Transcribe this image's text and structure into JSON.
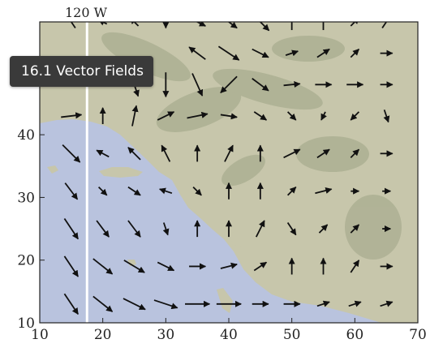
{
  "tooltip": {
    "text": "16.1 Vector Fields"
  },
  "map": {
    "top_label": "120 W",
    "x_ticks": [
      "10",
      "20",
      "30",
      "40",
      "50",
      "60",
      "70"
    ],
    "y_ticks": [
      "10",
      "20",
      "30",
      "40"
    ],
    "meridian_x": 17.5,
    "colors": {
      "ocean": "#b9c3de",
      "land": "#c7c6ab",
      "land_dark": "#9ea486",
      "arrow": "#111111",
      "meridian": "#ffffff",
      "frame": "#222222"
    },
    "vectors": [
      {
        "x": 15,
        "y": 43,
        "dx": 2.5,
        "dy": 0.3
      },
      {
        "x": 20,
        "y": 43,
        "dx": 0,
        "dy": 2
      },
      {
        "x": 25,
        "y": 43,
        "dx": 0.5,
        "dy": 2.5
      },
      {
        "x": 30,
        "y": 43,
        "dx": 2,
        "dy": 1
      },
      {
        "x": 35,
        "y": 43,
        "dx": 2.5,
        "dy": 0.5
      },
      {
        "x": 40,
        "y": 43,
        "dx": 2,
        "dy": -0.3
      },
      {
        "x": 45,
        "y": 43,
        "dx": 1.5,
        "dy": -1
      },
      {
        "x": 50,
        "y": 43,
        "dx": 1,
        "dy": -1
      },
      {
        "x": 55,
        "y": 43,
        "dx": -0.5,
        "dy": -1
      },
      {
        "x": 60,
        "y": 43,
        "dx": -1,
        "dy": -1
      },
      {
        "x": 65,
        "y": 43,
        "dx": 0.5,
        "dy": -1.5
      },
      {
        "x": 15,
        "y": 37,
        "dx": 2.5,
        "dy": -2.5
      },
      {
        "x": 20,
        "y": 37,
        "dx": -1.5,
        "dy": 0.8
      },
      {
        "x": 25,
        "y": 37,
        "dx": -1.5,
        "dy": 1.5
      },
      {
        "x": 30,
        "y": 37,
        "dx": -1,
        "dy": 2
      },
      {
        "x": 35,
        "y": 37,
        "dx": 0,
        "dy": 2
      },
      {
        "x": 40,
        "y": 37,
        "dx": 1,
        "dy": 2
      },
      {
        "x": 45,
        "y": 37,
        "dx": 0,
        "dy": 2
      },
      {
        "x": 50,
        "y": 37,
        "dx": 2,
        "dy": 1
      },
      {
        "x": 55,
        "y": 37,
        "dx": 1.5,
        "dy": 1
      },
      {
        "x": 60,
        "y": 37,
        "dx": 1,
        "dy": 1
      },
      {
        "x": 65,
        "y": 37,
        "dx": 1.5,
        "dy": 0
      },
      {
        "x": 15,
        "y": 31,
        "dx": 1.5,
        "dy": -2
      },
      {
        "x": 20,
        "y": 31,
        "dx": 1,
        "dy": -1
      },
      {
        "x": 25,
        "y": 31,
        "dx": 1.5,
        "dy": -1
      },
      {
        "x": 30,
        "y": 31,
        "dx": -1.5,
        "dy": 0.5
      },
      {
        "x": 35,
        "y": 31,
        "dx": 1,
        "dy": -1
      },
      {
        "x": 40,
        "y": 31,
        "dx": 0,
        "dy": 2
      },
      {
        "x": 45,
        "y": 31,
        "dx": 0,
        "dy": 2
      },
      {
        "x": 50,
        "y": 31,
        "dx": 1,
        "dy": 1
      },
      {
        "x": 55,
        "y": 31,
        "dx": 2,
        "dy": 0.5
      },
      {
        "x": 60,
        "y": 31,
        "dx": 1,
        "dy": 0
      },
      {
        "x": 65,
        "y": 31,
        "dx": 1,
        "dy": 0
      },
      {
        "x": 15,
        "y": 25,
        "dx": 2,
        "dy": -3
      },
      {
        "x": 20,
        "y": 25,
        "dx": 1.5,
        "dy": -2
      },
      {
        "x": 25,
        "y": 25,
        "dx": 1.5,
        "dy": -2
      },
      {
        "x": 30,
        "y": 25,
        "dx": 0.5,
        "dy": -1.5
      },
      {
        "x": 35,
        "y": 25,
        "dx": 0,
        "dy": 2
      },
      {
        "x": 40,
        "y": 25,
        "dx": 0,
        "dy": 2
      },
      {
        "x": 45,
        "y": 25,
        "dx": 1,
        "dy": 2
      },
      {
        "x": 50,
        "y": 25,
        "dx": 1,
        "dy": -1.5
      },
      {
        "x": 55,
        "y": 25,
        "dx": 1,
        "dy": 1
      },
      {
        "x": 60,
        "y": 25,
        "dx": 1,
        "dy": 1
      },
      {
        "x": 65,
        "y": 25,
        "dx": 1,
        "dy": 0
      },
      {
        "x": 15,
        "y": 19,
        "dx": 2,
        "dy": -3
      },
      {
        "x": 20,
        "y": 19,
        "dx": 2.5,
        "dy": -2
      },
      {
        "x": 25,
        "y": 19,
        "dx": 2.5,
        "dy": -1.5
      },
      {
        "x": 30,
        "y": 19,
        "dx": 2,
        "dy": -1
      },
      {
        "x": 35,
        "y": 19,
        "dx": 2,
        "dy": 0
      },
      {
        "x": 40,
        "y": 19,
        "dx": 2,
        "dy": 0.5
      },
      {
        "x": 45,
        "y": 19,
        "dx": 1.5,
        "dy": 1
      },
      {
        "x": 50,
        "y": 19,
        "dx": 0,
        "dy": 2
      },
      {
        "x": 55,
        "y": 19,
        "dx": 0,
        "dy": 2
      },
      {
        "x": 60,
        "y": 19,
        "dx": 1,
        "dy": 1.5
      },
      {
        "x": 65,
        "y": 19,
        "dx": 1.5,
        "dy": 0
      },
      {
        "x": 15,
        "y": 13,
        "dx": 2,
        "dy": -3
      },
      {
        "x": 20,
        "y": 13,
        "dx": 2.5,
        "dy": -2
      },
      {
        "x": 25,
        "y": 13,
        "dx": 3,
        "dy": -1.5
      },
      {
        "x": 30,
        "y": 13,
        "dx": 3,
        "dy": -1
      },
      {
        "x": 35,
        "y": 13,
        "dx": 3,
        "dy": 0
      },
      {
        "x": 40,
        "y": 13,
        "dx": 3,
        "dy": 0
      },
      {
        "x": 45,
        "y": 13,
        "dx": 2,
        "dy": 0
      },
      {
        "x": 50,
        "y": 13,
        "dx": 2,
        "dy": 0
      },
      {
        "x": 55,
        "y": 13,
        "dx": 1.5,
        "dy": 0.5
      },
      {
        "x": 60,
        "y": 13,
        "dx": 1.5,
        "dy": 0.5
      },
      {
        "x": 65,
        "y": 13,
        "dx": 1.5,
        "dy": 0.5
      },
      {
        "x": 25,
        "y": 48,
        "dx": 1,
        "dy": -3
      },
      {
        "x": 30,
        "y": 48,
        "dx": 0,
        "dy": -3
      },
      {
        "x": 35,
        "y": 48,
        "dx": 2,
        "dy": -4.5
      },
      {
        "x": 40,
        "y": 48,
        "dx": -2,
        "dy": -2
      },
      {
        "x": 45,
        "y": 48,
        "dx": 2,
        "dy": -1.5
      },
      {
        "x": 50,
        "y": 48,
        "dx": 2,
        "dy": 0.2
      },
      {
        "x": 55,
        "y": 48,
        "dx": 2,
        "dy": 0
      },
      {
        "x": 60,
        "y": 48,
        "dx": 2,
        "dy": 0
      },
      {
        "x": 65,
        "y": 48,
        "dx": 1.5,
        "dy": 0
      },
      {
        "x": 35,
        "y": 53,
        "dx": -2,
        "dy": 1.5
      },
      {
        "x": 40,
        "y": 53,
        "dx": 3,
        "dy": -2
      },
      {
        "x": 45,
        "y": 53,
        "dx": 2,
        "dy": -1
      },
      {
        "x": 50,
        "y": 53,
        "dx": 1.5,
        "dy": 0.5
      },
      {
        "x": 55,
        "y": 53,
        "dx": 1.5,
        "dy": 1
      },
      {
        "x": 60,
        "y": 53,
        "dx": 1,
        "dy": 1
      },
      {
        "x": 65,
        "y": 53,
        "dx": 1.5,
        "dy": 0
      },
      {
        "x": 15,
        "y": 58,
        "dx": -1,
        "dy": 1.5
      },
      {
        "x": 20,
        "y": 58,
        "dx": -1,
        "dy": 0.5
      },
      {
        "x": 25,
        "y": 58,
        "dx": -1,
        "dy": 1
      },
      {
        "x": 30,
        "y": 58,
        "dx": 0,
        "dy": -1.5
      },
      {
        "x": 35,
        "y": 58,
        "dx": 2,
        "dy": -1
      },
      {
        "x": 40,
        "y": 58,
        "dx": 2,
        "dy": -1.5
      },
      {
        "x": 45,
        "y": 58,
        "dx": 3,
        "dy": -3
      },
      {
        "x": 50,
        "y": 58,
        "dx": 0,
        "dy": 2
      },
      {
        "x": 55,
        "y": 58,
        "dx": 0,
        "dy": 2
      },
      {
        "x": 60,
        "y": 58,
        "dx": 1,
        "dy": 1
      },
      {
        "x": 65,
        "y": 58,
        "dx": 1,
        "dy": 1.5
      }
    ]
  }
}
